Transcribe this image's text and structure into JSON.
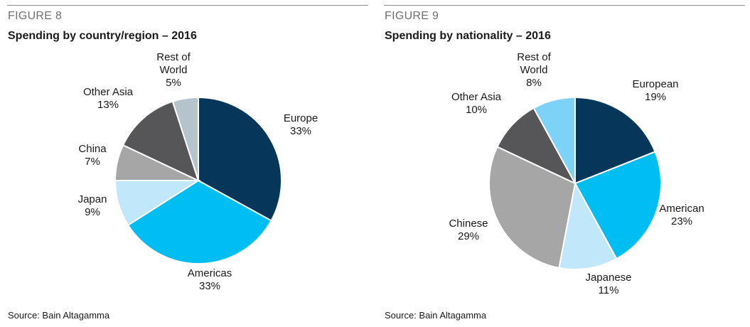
{
  "figures": [
    {
      "figure_label": "FIGURE 8",
      "title": "Spending by country/region – 2016",
      "source": "Source: Bain Altagamma"
    },
    {
      "figure_label": "FIGURE 9",
      "title": "Spending by nationality – 2016",
      "source": "Source:  Bain Altagamma"
    }
  ],
  "chart_data": [
    {
      "type": "pie",
      "title": "Spending by country/region – 2016",
      "slices": [
        {
          "label": "Europe",
          "value_label": "33%",
          "value": 33,
          "color": "#06365a"
        },
        {
          "label": "Americas",
          "value_label": "33%",
          "value": 33,
          "color": "#00bdf2"
        },
        {
          "label": "Japan",
          "value_label": "9%",
          "value": 9,
          "color": "#c0e8fa"
        },
        {
          "label": "China",
          "value_label": "7%",
          "value": 7,
          "color": "#a6a6a6"
        },
        {
          "label": "Other Asia",
          "value_label": "13%",
          "value": 13,
          "color": "#565659"
        },
        {
          "label": "Rest of World",
          "label_lines": [
            "Rest of",
            "World"
          ],
          "value_label": "5%",
          "value": 5,
          "color": "#b4c3cc"
        }
      ]
    },
    {
      "type": "pie",
      "title": "Spending by nationality – 2016",
      "slices": [
        {
          "label": "European",
          "value_label": "19%",
          "value": 19,
          "color": "#06365a"
        },
        {
          "label": "American",
          "value_label": "23%",
          "value": 23,
          "color": "#00bdf2"
        },
        {
          "label": "Japanese",
          "value_label": "11%",
          "value": 11,
          "color": "#c0e8fa"
        },
        {
          "label": "Chinese",
          "value_label": "29%",
          "value": 29,
          "color": "#a6a6a6"
        },
        {
          "label": "Other Asia",
          "value_label": "10%",
          "value": 10,
          "color": "#565659"
        },
        {
          "label": "Rest of World",
          "label_lines": [
            "Rest of",
            "World"
          ],
          "value_label": "8%",
          "value": 8,
          "color": "#7dd3f7"
        }
      ]
    }
  ]
}
